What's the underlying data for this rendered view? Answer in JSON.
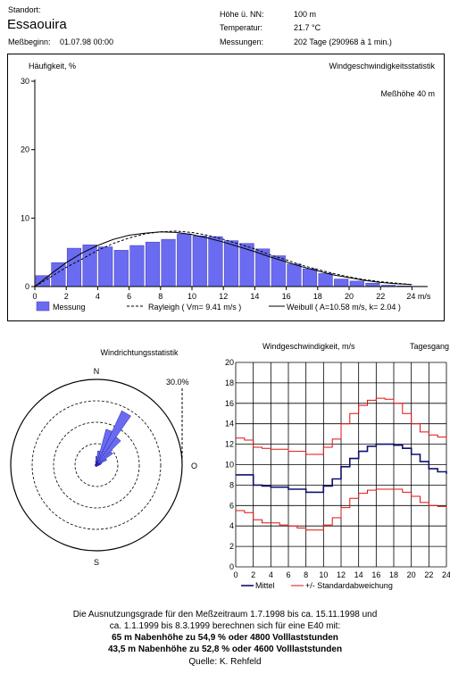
{
  "header": {
    "standort_label": "Standort:",
    "site_name": "Essaouira",
    "messbeginn_label": "Meßbeginn:",
    "messbeginn_value": "01.07.98 00:00",
    "hoehe_label": "Höhe ü. NN:",
    "hoehe_value": "100 m",
    "temperatur_label": "Temperatur:",
    "temperatur_value": "21.7 °C",
    "messungen_label": "Messungen:",
    "messungen_value": "202 Tage (290968 à 1 min.)"
  },
  "chart_data": [
    {
      "type": "bar",
      "title": "Windgeschwindigkeitsstatistik",
      "subtitle": "Meßhöhe 40 m",
      "ylabel": "Häufigkeit, %",
      "xunit": "m/s",
      "ylim": [
        0,
        30
      ],
      "xlim": [
        0,
        25
      ],
      "yticks": [
        0,
        10,
        20,
        30
      ],
      "xticks": [
        "0",
        "2",
        "4",
        "6",
        "8",
        "10",
        "12",
        "14",
        "16",
        "18",
        "20",
        "22",
        "24 m/s"
      ],
      "bin_width": 1,
      "bin_starts": [
        0,
        1,
        2,
        3,
        4,
        5,
        6,
        7,
        8,
        9,
        10,
        11,
        12,
        13,
        14,
        15,
        16,
        17,
        18,
        19,
        20,
        21,
        22,
        23,
        24
      ],
      "series": [
        {
          "name": "Messung",
          "color": "#6b6bf2",
          "values": [
            1.6,
            3.5,
            5.6,
            6.1,
            5.8,
            5.3,
            6.0,
            6.5,
            6.9,
            7.7,
            7.4,
            7.3,
            6.7,
            6.3,
            5.5,
            4.5,
            3.3,
            2.6,
            1.9,
            1.1,
            0.8,
            0.5,
            0.2,
            0.1,
            0.05
          ]
        },
        {
          "name": "Rayleigh ( Vm= 9.41 m/s )",
          "color": "#000000",
          "x": [
            0,
            1,
            2,
            3,
            4,
            5,
            6,
            7,
            8,
            9,
            10,
            11,
            12,
            13,
            14,
            15,
            16,
            17,
            18,
            19,
            20,
            21,
            22,
            23,
            24
          ],
          "values": [
            0,
            1.4,
            2.8,
            4.0,
            5.3,
            6.3,
            7.1,
            7.7,
            8.0,
            8.1,
            7.9,
            7.5,
            6.9,
            6.2,
            5.5,
            4.6,
            3.9,
            3.1,
            2.5,
            1.9,
            1.4,
            1.0,
            0.7,
            0.5,
            0.3
          ]
        },
        {
          "name": "Weibull ( A=10.58 m/s, k= 2.04 )",
          "color": "#000000",
          "x": [
            0,
            1,
            2,
            3,
            4,
            5,
            6,
            7,
            8,
            9,
            10,
            11,
            12,
            13,
            14,
            15,
            16,
            17,
            18,
            19,
            20,
            21,
            22,
            23,
            24
          ],
          "values": [
            0,
            1.8,
            3.5,
            4.9,
            6.0,
            6.9,
            7.5,
            7.8,
            8.0,
            7.9,
            7.6,
            7.1,
            6.5,
            5.8,
            5.1,
            4.3,
            3.6,
            2.9,
            2.3,
            1.7,
            1.3,
            0.9,
            0.6,
            0.4,
            0.3
          ]
        }
      ],
      "legend_position": "bottom",
      "grid": false
    },
    {
      "type": "polar",
      "title": "Windrichtungsstatistik",
      "ring_label": "30.0%",
      "direction_labels": {
        "n": "N",
        "o": "O",
        "s": "S"
      },
      "rmax": 30,
      "rings": [
        7.5,
        15,
        22.5,
        30
      ],
      "sectors_deg": [
        0,
        10,
        20,
        30,
        40,
        50,
        60,
        70,
        80,
        90,
        100,
        110,
        120,
        130,
        140,
        150,
        160,
        170,
        180,
        190,
        200,
        210,
        220,
        230,
        240,
        250,
        260,
        270,
        280,
        290,
        300,
        310,
        320,
        330,
        340,
        350
      ],
      "values": [
        3,
        5,
        13,
        21,
        12,
        7,
        4,
        2,
        1.5,
        1,
        0.8,
        0.5,
        0.5,
        0.5,
        0.5,
        0.5,
        0.5,
        0.5,
        0.5,
        0.5,
        0.5,
        0.5,
        0.5,
        0.5,
        0.5,
        0.5,
        0.5,
        0.5,
        0.5,
        0.5,
        0.5,
        0.5,
        0.5,
        0.5,
        0.8,
        1.5
      ],
      "color": "#6b6bf2"
    },
    {
      "type": "line",
      "title": "Tagesgang",
      "ylabel": "Windgeschwindigkeit, m/s",
      "ylim": [
        0,
        20
      ],
      "xlim": [
        0,
        24
      ],
      "yticks": [
        0,
        2,
        4,
        6,
        8,
        10,
        12,
        14,
        16,
        18,
        20
      ],
      "xticks": [
        0,
        2,
        4,
        6,
        8,
        10,
        12,
        14,
        16,
        18,
        20,
        22,
        24
      ],
      "grid": true,
      "x": [
        0,
        1,
        2,
        3,
        4,
        5,
        6,
        7,
        8,
        9,
        10,
        11,
        12,
        13,
        14,
        15,
        16,
        17,
        18,
        19,
        20,
        21,
        22,
        23,
        24
      ],
      "series": [
        {
          "name": "Mittel",
          "color": "#10106e",
          "values": [
            9.0,
            9.0,
            8.0,
            7.9,
            7.8,
            7.8,
            7.6,
            7.6,
            7.3,
            7.3,
            7.9,
            8.6,
            9.8,
            10.6,
            11.3,
            11.8,
            12.0,
            12.0,
            11.9,
            11.6,
            11.0,
            10.3,
            9.6,
            9.3,
            9.1
          ]
        },
        {
          "name": "+/- Standardabweichung (upper)",
          "color": "#e01010",
          "values": [
            12.6,
            12.4,
            11.7,
            11.6,
            11.5,
            11.5,
            11.3,
            11.3,
            11.0,
            11.0,
            11.7,
            12.5,
            14.0,
            15.0,
            15.8,
            16.3,
            16.5,
            16.4,
            16.0,
            15.0,
            14.0,
            13.2,
            12.9,
            12.7,
            12.5
          ]
        },
        {
          "name": "+/- Standardabweichung (lower)",
          "color": "#e01010",
          "values": [
            5.5,
            5.3,
            4.6,
            4.3,
            4.3,
            4.1,
            4.0,
            3.8,
            3.6,
            3.6,
            4.1,
            4.8,
            5.8,
            6.7,
            7.2,
            7.5,
            7.6,
            7.6,
            7.6,
            7.3,
            6.9,
            6.3,
            6.0,
            5.9,
            5.8
          ]
        }
      ],
      "legend": {
        "mittel": "Mittel",
        "std": "+/- Standardabweichung"
      }
    }
  ],
  "footer": {
    "line1": "Die Ausnutzungsgrade für den Meßzeitraum 1.7.1998 bis ca. 15.11.1998 und",
    "line2": "ca. 1.1.1999 bis 8.3.1999 berechnen sich für eine E40 mit:",
    "line3": "65 m Nabenhöhe zu 54,9 % oder 4800 Volllaststunden",
    "line4": "43,5 m Nabenhöhe zu 52,8 % oder 4600 Volllaststunden",
    "line5": "Quelle: K. Rehfeld"
  }
}
